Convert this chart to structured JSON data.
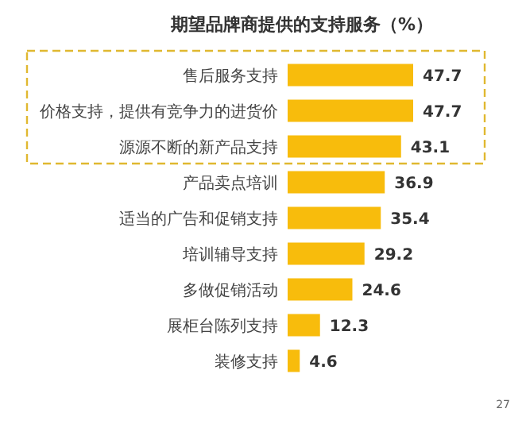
{
  "chart_data": {
    "type": "bar",
    "orientation": "horizontal",
    "title": "期望品牌商提供的支持服务（%）",
    "categories": [
      "售后服务支持",
      "价格支持，提供有竞争力的进货价",
      "源源不断的新产品支持",
      "产品卖点培训",
      "适当的广告和促销支持",
      "培训辅导支持",
      "多做促销活动",
      "展柜台陈列支持",
      "装修支持"
    ],
    "values": [
      47.7,
      47.7,
      43.1,
      36.9,
      35.4,
      29.2,
      24.6,
      12.3,
      4.6
    ],
    "color": "#f8bc0c",
    "data_labels": true,
    "annotations": [
      "27"
    ]
  }
}
